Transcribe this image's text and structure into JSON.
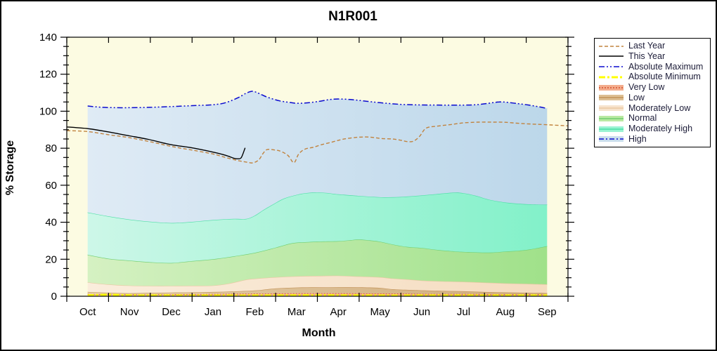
{
  "title": "N1R001",
  "axes": {
    "y_label": "% Storage",
    "x_label": "Month",
    "x_labels": [
      "Oct",
      "Nov",
      "Dec",
      "Jan",
      "Feb",
      "Mar",
      "Apr",
      "May",
      "Jun",
      "Jul",
      "Aug",
      "Sep"
    ],
    "y_tick_values": [
      0,
      20,
      40,
      60,
      80,
      100,
      120,
      140
    ],
    "y_minor_step": 5
  },
  "legend": {
    "items": [
      {
        "label": "Last Year",
        "kind": "line",
        "color": "#C1833F",
        "dash": "5 3",
        "width": 1.4
      },
      {
        "label": "This Year",
        "kind": "line",
        "color": "#000000",
        "dash": "",
        "width": 1.4
      },
      {
        "label": "Absolute Maximum",
        "kind": "line",
        "color": "#0A0ACF",
        "dash": "8 3 2 3 2 3",
        "width": 1.5
      },
      {
        "label": "Absolute Minimum",
        "kind": "line",
        "color": "#FFFF00",
        "dash": "9 3 3 3",
        "width": 3
      },
      {
        "label": "Very Low",
        "kind": "band",
        "fill": "#F3AC8C",
        "line_color": "#D4512F",
        "line_dash": "2 2"
      },
      {
        "label": "Low",
        "kind": "band",
        "fill": "#DDBE92",
        "line_color": "#C29258",
        "line_dash": ""
      },
      {
        "label": "Moderately Low",
        "kind": "band",
        "fill": "#F7E3CC",
        "line_color": "#EAC8A2",
        "line_dash": ""
      },
      {
        "label": "Normal",
        "kind": "band",
        "fill": "#B9E9A2",
        "line_color": "#70CE70",
        "line_dash": ""
      },
      {
        "label": "Moderately High",
        "kind": "band",
        "fill": "#9AF3D3",
        "line_color": "#4ADFA4",
        "line_dash": ""
      },
      {
        "label": "High",
        "kind": "band",
        "fill": "#CADEED",
        "line_color": "#0A0ACF",
        "line_dash": "7 3 2 3"
      }
    ]
  },
  "chart_data": {
    "type": "area",
    "title": "N1R001",
    "xlabel": "Month",
    "ylabel": "% Storage",
    "ylim": [
      0,
      140
    ],
    "x_unit": "month index, 0=Oct mid-month ... 11=Sep mid-month, water year",
    "plot_bg": "#FCFBE2",
    "frame_color": "#000000",
    "baseline": 0.3,
    "bands": [
      {
        "name": "very_low",
        "label": "Very Low",
        "top": "very_low_top",
        "fill0": "#F7BCA0",
        "fill1": "#EF9C78",
        "stroke": "#D4512F",
        "stroke_dash": "2 2",
        "stroke_w": 1.4
      },
      {
        "name": "low",
        "label": "Low",
        "top": "low_top",
        "fill0": "#E6CFA9",
        "fill1": "#D0AC7C",
        "stroke": "#C29258",
        "stroke_dash": "",
        "stroke_w": 1.2
      },
      {
        "name": "moderately_low",
        "label": "Moderately Low",
        "top": "moderately_low_top",
        "fill0": "#FAEDDC",
        "fill1": "#F5DCC0",
        "stroke": "#EAC8A2",
        "stroke_dash": "",
        "stroke_w": 1.2
      },
      {
        "name": "normal",
        "label": "Normal",
        "top": "normal_top",
        "fill0": "#D5F1C2",
        "fill1": "#A0E18A",
        "stroke": "#70CE70",
        "stroke_dash": "",
        "stroke_w": 1.2
      },
      {
        "name": "moderately_high",
        "label": "Moderately High",
        "top": "moderately_high_top",
        "fill0": "#CDF7E8",
        "fill1": "#82F1C9",
        "stroke": "#4ADFA4",
        "stroke_dash": "",
        "stroke_w": 1.2
      },
      {
        "name": "high",
        "label": "High",
        "top": "absolute_maximum",
        "fill0": "#DFEBF5",
        "fill1": "#BCD7EA",
        "stroke": "#0A0ACF",
        "stroke_dash": "8 3 2 3 2 3",
        "stroke_w": 1.5
      }
    ],
    "series": [
      {
        "name": "absolute_maximum",
        "label": "Absolute Maximum",
        "role": "band-top",
        "x": [
          0,
          0.35,
          0.7,
          1,
          1.5,
          2,
          2.5,
          3,
          3.3,
          3.6,
          3.8,
          3.95,
          4.1,
          4.3,
          4.6,
          4.85,
          5,
          5.2,
          5.5,
          5.8,
          6,
          6.3,
          6.6,
          7,
          7.5,
          8,
          8.5,
          9,
          9.3,
          9.6,
          9.85,
          10,
          10.3,
          10.6,
          10.8,
          11
        ],
        "y": [
          102.8,
          102.1,
          101.9,
          101.9,
          102.1,
          102.5,
          103,
          103.5,
          104.6,
          107.3,
          109.8,
          110.8,
          109.6,
          107.6,
          105.6,
          104.7,
          104.3,
          104.4,
          105.2,
          106.3,
          106.6,
          106.3,
          105.6,
          104.6,
          103.7,
          103.4,
          103.3,
          103.3,
          103.5,
          104.3,
          105,
          104.9,
          104.1,
          103.2,
          102.4,
          101.5
        ]
      },
      {
        "name": "moderately_high_top",
        "label": "Moderately High (top)",
        "role": "band-top",
        "x": [
          0,
          0.5,
          1,
          1.5,
          2,
          2.5,
          3,
          3.5,
          3.8,
          4,
          4.2,
          4.45,
          4.7,
          5,
          5.2,
          5.45,
          5.7,
          6,
          6.4,
          6.8,
          7.1,
          7.5,
          8,
          8.3,
          8.75,
          9,
          9.3,
          9.6,
          10,
          10.4,
          10.7,
          11
        ],
        "y": [
          45.3,
          43.2,
          41.5,
          40.3,
          39.6,
          40.2,
          41.2,
          41.8,
          41.8,
          43.6,
          46.5,
          49.8,
          52.8,
          54.8,
          55.7,
          56.1,
          55.9,
          55.1,
          54.4,
          53.8,
          53.5,
          53.7,
          54.5,
          55.1,
          56,
          55.7,
          54.3,
          52.3,
          50.7,
          49.9,
          49.6,
          49.5
        ]
      },
      {
        "name": "normal_top",
        "label": "Normal (top)",
        "role": "band-top",
        "x": [
          0,
          0.5,
          1,
          1.5,
          2,
          2.5,
          3,
          3.5,
          4,
          4.5,
          4.9,
          5.2,
          5.6,
          6,
          6.3,
          6.5,
          6.75,
          7,
          7.35,
          7.65,
          8,
          8.4,
          8.8,
          9.1,
          9.6,
          10,
          10.3,
          10.6,
          11
        ],
        "y": [
          22.4,
          20.3,
          19.3,
          18.4,
          18,
          19,
          20,
          21.6,
          23.5,
          26.3,
          28.7,
          29.2,
          29.6,
          29.8,
          30.3,
          30.7,
          30.2,
          29.5,
          27.8,
          26.7,
          26.1,
          25,
          24.2,
          23.9,
          23.6,
          24.2,
          24.6,
          25.4,
          27.1
        ]
      },
      {
        "name": "moderately_low_top",
        "label": "Moderately Low (top)",
        "role": "band-top",
        "x": [
          0,
          0.5,
          1,
          1.5,
          2,
          2.5,
          3,
          3.4,
          3.8,
          4,
          4.5,
          5,
          5.5,
          6,
          6.5,
          7,
          7.3,
          7.6,
          8,
          8.5,
          9,
          9.5,
          10,
          10.5,
          11
        ],
        "y": [
          7.5,
          6.4,
          5.8,
          5.6,
          5.6,
          5.7,
          5.8,
          7,
          9,
          9.5,
          10.3,
          10.8,
          11,
          11.1,
          10.7,
          10.3,
          9.6,
          9.2,
          8.5,
          8.1,
          7.8,
          7.4,
          7,
          6.7,
          6.4
        ]
      },
      {
        "name": "low_top",
        "label": "Low (top)",
        "role": "band-top",
        "x": [
          0,
          0.5,
          1,
          1.5,
          2,
          2.5,
          3,
          3.5,
          4,
          4.5,
          5,
          5.5,
          6,
          6.5,
          7,
          7.3,
          7.7,
          8,
          8.5,
          9,
          9.5,
          10,
          10.5,
          11
        ],
        "y": [
          2.3,
          1.9,
          1.6,
          1.8,
          2,
          2.1,
          2.3,
          2.6,
          3.1,
          4.2,
          4.7,
          4.8,
          4.9,
          4.8,
          4.5,
          3.8,
          3.4,
          3.2,
          2.9,
          2.7,
          2.3,
          2.1,
          1.9,
          1.7
        ]
      },
      {
        "name": "very_low_top",
        "label": "Very Low (top)",
        "role": "band-top",
        "x": [
          0,
          1,
          2,
          3,
          4,
          5,
          6,
          7,
          8,
          9,
          10,
          11
        ],
        "y": [
          1.2,
          1,
          1.1,
          1.2,
          1.4,
          1.6,
          1.6,
          1.5,
          1.3,
          1.2,
          1.1,
          1
        ]
      },
      {
        "name": "absolute_minimum",
        "label": "Absolute Minimum",
        "role": "line",
        "color": "#FFFF00",
        "width": 3,
        "dash": "9 3 3 3",
        "x": [
          0,
          0.5,
          1,
          2,
          3,
          4,
          5,
          6,
          7,
          8,
          9,
          10,
          11
        ],
        "y": [
          0.5,
          0.8,
          0.5,
          0.4,
          0.4,
          0.4,
          0.5,
          0.5,
          0.4,
          0.4,
          0.4,
          0.4,
          0.4
        ]
      },
      {
        "name": "last_year",
        "label": "Last Year",
        "role": "line",
        "color": "#C1833F",
        "width": 1.4,
        "dash": "5 3",
        "x": [
          -0.5,
          0,
          0.5,
          1,
          1.5,
          2,
          2.5,
          3,
          3.3,
          3.6,
          3.8,
          3.96,
          4.1,
          4.2,
          4.3,
          4.5,
          4.65,
          4.8,
          4.94,
          5.05,
          5.2,
          5.4,
          5.6,
          5.85,
          6.1,
          6.4,
          6.65,
          6.85,
          7.05,
          7.3,
          7.5,
          7.65,
          7.8,
          7.95,
          8.1,
          8.35,
          8.7,
          9,
          9.35,
          9.7,
          10,
          10.35,
          10.7,
          11,
          11.5
        ],
        "y": [
          89.5,
          89,
          87.3,
          85.7,
          83.5,
          81,
          79,
          76.9,
          75,
          73.3,
          72.5,
          72.1,
          73.8,
          77.2,
          79.3,
          79,
          78.1,
          76,
          72.2,
          76.8,
          79.5,
          80.5,
          81.9,
          83.3,
          84.8,
          85.8,
          86.1,
          85.8,
          85.2,
          85,
          84.3,
          83.6,
          83.8,
          86.5,
          90.8,
          91.9,
          92.8,
          93.7,
          94.1,
          94.1,
          94,
          93.4,
          93,
          92.7,
          92.1
        ]
      },
      {
        "name": "this_year",
        "label": "This Year",
        "role": "line",
        "color": "#000000",
        "width": 1.4,
        "dash": "",
        "x": [
          -0.5,
          0,
          0.45,
          1,
          1.45,
          2,
          2.45,
          3,
          3.3,
          3.5,
          3.6,
          3.68,
          3.77
        ],
        "y": [
          91.5,
          90.6,
          89,
          86.7,
          84.8,
          81.9,
          80.4,
          77.9,
          76.2,
          74.6,
          74.3,
          75,
          80.2
        ]
      }
    ]
  }
}
